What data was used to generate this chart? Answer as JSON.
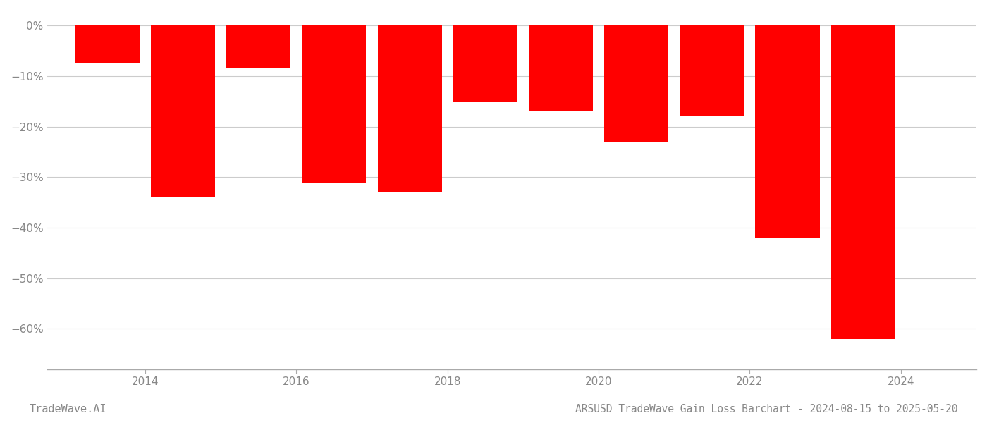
{
  "years": [
    2013.5,
    2014.5,
    2015.5,
    2016.5,
    2017.5,
    2018.5,
    2019.5,
    2020.5,
    2021.5,
    2022.5,
    2023.5
  ],
  "values": [
    -7.5,
    -34.0,
    -8.5,
    -31.0,
    -33.0,
    -15.0,
    -17.0,
    -23.0,
    -18.0,
    -42.0,
    -62.0
  ],
  "bar_color": "#ff0000",
  "background_color": "#ffffff",
  "label_color": "#888888",
  "grid_color": "#cccccc",
  "title": "ARSUSD TradeWave Gain Loss Barchart - 2024-08-15 to 2025-05-20",
  "watermark": "TradeWave.AI",
  "ylim_min": -68,
  "ylim_max": 3,
  "yticks": [
    0,
    -10,
    -20,
    -30,
    -40,
    -50,
    -60
  ],
  "xtick_labels": [
    "2014",
    "2016",
    "2018",
    "2020",
    "2022",
    "2024"
  ],
  "xtick_positions": [
    2014,
    2016,
    2018,
    2020,
    2022,
    2024
  ],
  "xlim_min": 2012.7,
  "xlim_max": 2025.0,
  "bar_width": 0.85,
  "title_fontsize": 10.5,
  "tick_fontsize": 11,
  "watermark_fontsize": 11
}
